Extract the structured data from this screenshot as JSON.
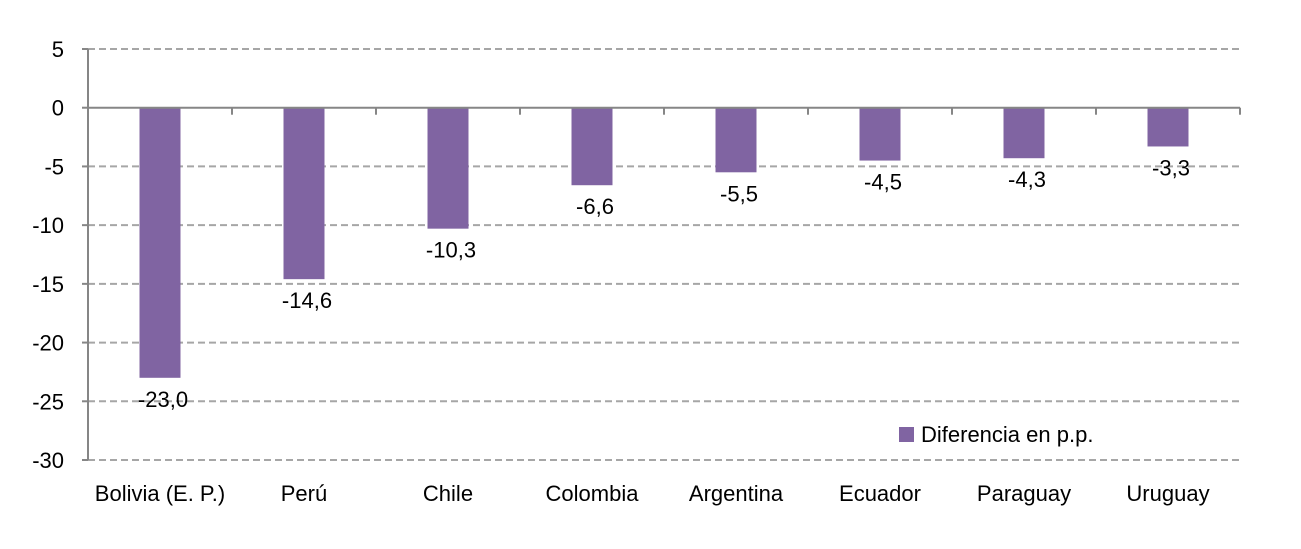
{
  "chart_data": {
    "type": "bar",
    "categories": [
      "Bolivia (E. P.)",
      "Perú",
      "Chile",
      "Colombia",
      "Argentina",
      "Ecuador",
      "Paraguay",
      "Uruguay"
    ],
    "series": [
      {
        "name": "Diferencia en p.p.",
        "values": [
          -23.0,
          -14.6,
          -10.3,
          -6.6,
          -5.5,
          -4.5,
          -4.3,
          -3.3
        ],
        "labels": [
          "-23,0",
          "-14,6",
          "-10,3",
          "-6,6",
          "-5,5",
          "-4,5",
          "-4,3",
          "-3,3"
        ],
        "color": "#8064a2"
      }
    ],
    "ylim": [
      -30,
      5
    ],
    "yticks": [
      5,
      0,
      -5,
      -10,
      -15,
      -20,
      -25,
      -30
    ],
    "grid": true,
    "grid_style": "dashed",
    "legend_position": "bottom-right",
    "title": "",
    "xlabel": "",
    "ylabel": ""
  }
}
